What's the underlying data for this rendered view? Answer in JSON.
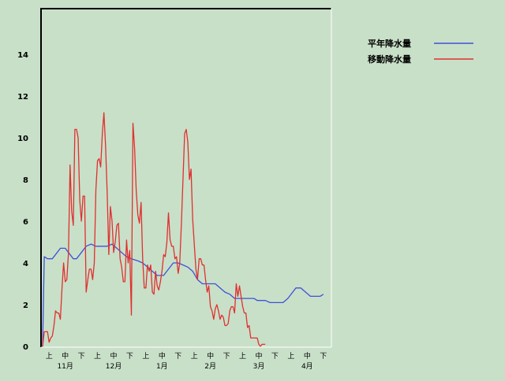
{
  "chart_data": {
    "type": "line",
    "title": "",
    "xlabel": "",
    "ylabel": "",
    "ylim": [
      0,
      16
    ],
    "yticks": [
      0,
      2,
      4,
      6,
      8,
      10,
      12,
      14
    ],
    "grid": false,
    "legend_position": "top-right",
    "x_ticks": [
      {
        "label": "上",
        "day": 5
      },
      {
        "label": "中",
        "day": 15
      },
      {
        "label": "下",
        "day": 25
      },
      {
        "label": "上",
        "day": 35
      },
      {
        "label": "中",
        "day": 45
      },
      {
        "label": "下",
        "day": 55
      },
      {
        "label": "上",
        "day": 65
      },
      {
        "label": "中",
        "day": 75
      },
      {
        "label": "下",
        "day": 85
      },
      {
        "label": "上",
        "day": 95
      },
      {
        "label": "中",
        "day": 105
      },
      {
        "label": "下",
        "day": 115
      },
      {
        "label": "上",
        "day": 125
      },
      {
        "label": "中",
        "day": 135
      },
      {
        "label": "下",
        "day": 145
      },
      {
        "label": "上",
        "day": 155
      },
      {
        "label": "中",
        "day": 165
      },
      {
        "label": "下",
        "day": 175
      }
    ],
    "months": [
      {
        "label": "11月",
        "day": 15
      },
      {
        "label": "12月",
        "day": 45
      },
      {
        "label": "1月",
        "day": 75
      },
      {
        "label": "2月",
        "day": 105
      },
      {
        "label": "3月",
        "day": 135
      },
      {
        "label": "4月",
        "day": 165
      }
    ],
    "xlim": [
      0,
      180
    ],
    "series": [
      {
        "name": "平年降水量",
        "color": "#4050d8",
        "points": [
          [
            0,
            0
          ],
          [
            1,
            0
          ],
          [
            2,
            4.3
          ],
          [
            4,
            4.2
          ],
          [
            7,
            4.2
          ],
          [
            10,
            4.5
          ],
          [
            12,
            4.7
          ],
          [
            15,
            4.7
          ],
          [
            17,
            4.5
          ],
          [
            20,
            4.2
          ],
          [
            22,
            4.2
          ],
          [
            25,
            4.5
          ],
          [
            28,
            4.8
          ],
          [
            31,
            4.9
          ],
          [
            34,
            4.8
          ],
          [
            38,
            4.8
          ],
          [
            41,
            4.8
          ],
          [
            44,
            4.9
          ],
          [
            47,
            4.7
          ],
          [
            50,
            4.5
          ],
          [
            53,
            4.3
          ],
          [
            56,
            4.2
          ],
          [
            60,
            4.1
          ],
          [
            63,
            4.0
          ],
          [
            66,
            3.8
          ],
          [
            69,
            3.6
          ],
          [
            72,
            3.4
          ],
          [
            76,
            3.4
          ],
          [
            79,
            3.7
          ],
          [
            82,
            4.0
          ],
          [
            85,
            4.0
          ],
          [
            88,
            3.9
          ],
          [
            91,
            3.8
          ],
          [
            94,
            3.6
          ],
          [
            97,
            3.2
          ],
          [
            100,
            3.0
          ],
          [
            104,
            3.0
          ],
          [
            108,
            3.0
          ],
          [
            111,
            2.8
          ],
          [
            114,
            2.6
          ],
          [
            117,
            2.5
          ],
          [
            120,
            2.3
          ],
          [
            124,
            2.3
          ],
          [
            128,
            2.3
          ],
          [
            132,
            2.3
          ],
          [
            134,
            2.2
          ],
          [
            139,
            2.2
          ],
          [
            142,
            2.1
          ],
          [
            146,
            2.1
          ],
          [
            150,
            2.1
          ],
          [
            153,
            2.3
          ],
          [
            156,
            2.6
          ],
          [
            158,
            2.8
          ],
          [
            161,
            2.8
          ],
          [
            164,
            2.6
          ],
          [
            167,
            2.4
          ],
          [
            170,
            2.4
          ],
          [
            173,
            2.4
          ],
          [
            175,
            2.5
          ]
        ]
      },
      {
        "name": "移動降水量",
        "color": "#e03030",
        "points": [
          [
            1,
            0
          ],
          [
            2,
            0.7
          ],
          [
            4,
            0.7
          ],
          [
            5,
            0.2
          ],
          [
            6,
            0.4
          ],
          [
            7,
            0.5
          ],
          [
            8,
            1.0
          ],
          [
            9,
            1.7
          ],
          [
            10,
            1.6
          ],
          [
            11,
            1.6
          ],
          [
            12,
            1.3
          ],
          [
            13,
            2.8
          ],
          [
            14,
            4.0
          ],
          [
            15,
            3.1
          ],
          [
            16,
            3.2
          ],
          [
            17,
            4.5
          ],
          [
            18,
            8.7
          ],
          [
            19,
            6.5
          ],
          [
            20,
            5.8
          ],
          [
            21,
            10.4
          ],
          [
            22,
            10.4
          ],
          [
            23,
            10.0
          ],
          [
            24,
            7.0
          ],
          [
            25,
            6.0
          ],
          [
            26,
            7.2
          ],
          [
            27,
            7.2
          ],
          [
            28,
            2.6
          ],
          [
            29,
            3.2
          ],
          [
            30,
            3.7
          ],
          [
            31,
            3.7
          ],
          [
            32,
            3.2
          ],
          [
            33,
            4.0
          ],
          [
            34,
            7.5
          ],
          [
            35,
            8.9
          ],
          [
            36,
            9.0
          ],
          [
            37,
            8.6
          ],
          [
            38,
            10.2
          ],
          [
            39,
            11.2
          ],
          [
            40,
            9.6
          ],
          [
            41,
            7.4
          ],
          [
            42,
            4.4
          ],
          [
            43,
            6.7
          ],
          [
            44,
            6.0
          ],
          [
            45,
            4.5
          ],
          [
            46,
            5.0
          ],
          [
            47,
            5.8
          ],
          [
            48,
            5.9
          ],
          [
            49,
            4.2
          ],
          [
            50,
            3.8
          ],
          [
            51,
            3.1
          ],
          [
            52,
            3.1
          ],
          [
            53,
            5.1
          ],
          [
            54,
            4.0
          ],
          [
            55,
            4.6
          ],
          [
            56,
            1.5
          ],
          [
            57,
            10.7
          ],
          [
            58,
            9.5
          ],
          [
            59,
            7.5
          ],
          [
            60,
            6.3
          ],
          [
            61,
            5.9
          ],
          [
            62,
            6.9
          ],
          [
            63,
            4.2
          ],
          [
            64,
            2.8
          ],
          [
            65,
            2.8
          ],
          [
            66,
            3.9
          ],
          [
            67,
            3.6
          ],
          [
            68,
            3.9
          ],
          [
            69,
            2.6
          ],
          [
            70,
            2.5
          ],
          [
            71,
            3.6
          ],
          [
            72,
            2.9
          ],
          [
            73,
            2.7
          ],
          [
            74,
            3.1
          ],
          [
            75,
            3.6
          ],
          [
            76,
            4.4
          ],
          [
            77,
            4.3
          ],
          [
            78,
            5.0
          ],
          [
            79,
            6.4
          ],
          [
            80,
            5.1
          ],
          [
            81,
            4.8
          ],
          [
            82,
            4.8
          ],
          [
            83,
            4.2
          ],
          [
            84,
            4.3
          ],
          [
            85,
            3.5
          ],
          [
            86,
            4.0
          ],
          [
            87,
            5.9
          ],
          [
            88,
            8.0
          ],
          [
            89,
            10.2
          ],
          [
            90,
            10.4
          ],
          [
            91,
            9.8
          ],
          [
            92,
            8.0
          ],
          [
            93,
            8.5
          ],
          [
            94,
            6.1
          ],
          [
            95,
            4.9
          ],
          [
            96,
            3.7
          ],
          [
            97,
            3.2
          ],
          [
            98,
            4.2
          ],
          [
            99,
            4.2
          ],
          [
            100,
            3.9
          ],
          [
            101,
            3.9
          ],
          [
            102,
            3.2
          ],
          [
            103,
            2.6
          ],
          [
            104,
            2.9
          ],
          [
            105,
            1.9
          ],
          [
            106,
            1.7
          ],
          [
            107,
            1.3
          ],
          [
            108,
            1.8
          ],
          [
            109,
            2.0
          ],
          [
            110,
            1.7
          ],
          [
            111,
            1.3
          ],
          [
            112,
            1.5
          ],
          [
            113,
            1.4
          ],
          [
            114,
            1.0
          ],
          [
            115,
            1.0
          ],
          [
            116,
            1.1
          ],
          [
            117,
            1.7
          ],
          [
            118,
            1.9
          ],
          [
            119,
            1.9
          ],
          [
            120,
            1.6
          ],
          [
            121,
            3.0
          ],
          [
            122,
            2.4
          ],
          [
            123,
            2.9
          ],
          [
            124,
            2.4
          ],
          [
            125,
            1.9
          ],
          [
            126,
            1.6
          ],
          [
            127,
            1.6
          ],
          [
            128,
            0.9
          ],
          [
            129,
            1.0
          ],
          [
            130,
            0.4
          ],
          [
            131,
            0.4
          ],
          [
            132,
            0.4
          ],
          [
            133,
            0.4
          ],
          [
            134,
            0.4
          ],
          [
            135,
            0.1
          ],
          [
            136,
            0.0
          ],
          [
            137,
            0.1
          ],
          [
            139,
            0.1
          ]
        ]
      }
    ]
  }
}
